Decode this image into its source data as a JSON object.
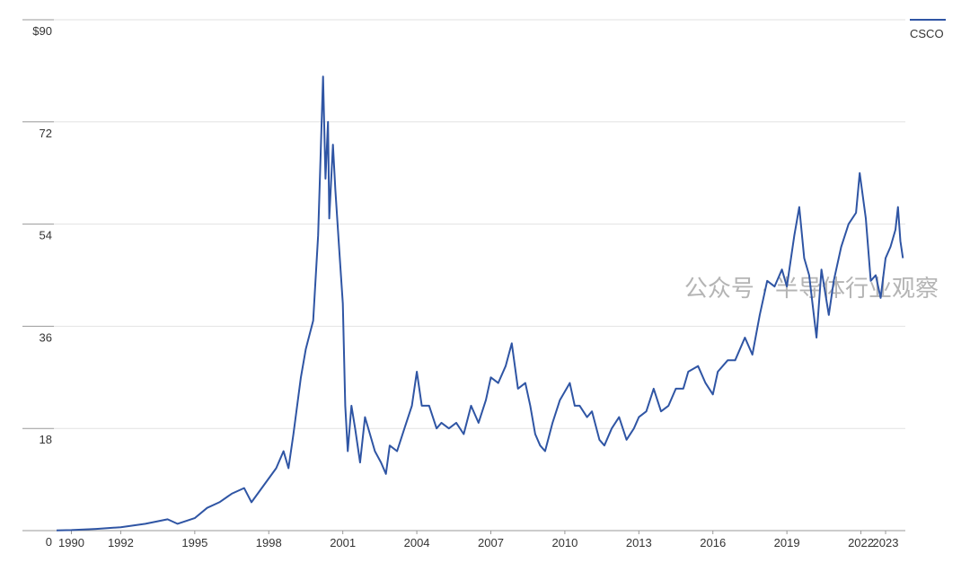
{
  "chart_data": {
    "type": "line",
    "legend_position": "top-right",
    "grid": true,
    "watermark": "公众号 · 半导体行业观察",
    "xlim": [
      1989.4,
      2023.8
    ],
    "xticks": [
      1990,
      1992,
      1995,
      1998,
      2001,
      2004,
      2007,
      2010,
      2013,
      2016,
      2019,
      2022,
      2023
    ],
    "ylim": [
      0,
      90
    ],
    "yticks": [
      0,
      18,
      36,
      54,
      72,
      {
        "value": 90,
        "label": "$90"
      }
    ],
    "x": [
      1989.4,
      1990.0,
      1991.0,
      1992.0,
      1993.0,
      1993.9,
      1994.3,
      1995.0,
      1995.5,
      1996.0,
      1996.5,
      1997.0,
      1997.3,
      1997.8,
      1998.3,
      1998.6,
      1998.8,
      1999.0,
      1999.3,
      1999.5,
      1999.8,
      2000.0,
      2000.2,
      2000.3,
      2000.4,
      2000.45,
      2000.6,
      2000.7,
      2000.85,
      2001.0,
      2001.1,
      2001.2,
      2001.35,
      2001.5,
      2001.7,
      2001.9,
      2002.1,
      2002.3,
      2002.55,
      2002.75,
      2002.9,
      2003.2,
      2003.5,
      2003.8,
      2004.0,
      2004.2,
      2004.5,
      2004.8,
      2005.0,
      2005.3,
      2005.6,
      2005.9,
      2006.2,
      2006.5,
      2006.8,
      2007.0,
      2007.3,
      2007.6,
      2007.85,
      2008.1,
      2008.4,
      2008.6,
      2008.8,
      2009.0,
      2009.2,
      2009.5,
      2009.8,
      2010.2,
      2010.4,
      2010.6,
      2010.9,
      2011.1,
      2011.4,
      2011.6,
      2011.9,
      2012.2,
      2012.5,
      2012.8,
      2013.0,
      2013.3,
      2013.6,
      2013.9,
      2014.2,
      2014.5,
      2014.8,
      2015.0,
      2015.4,
      2015.7,
      2016.0,
      2016.2,
      2016.6,
      2016.9,
      2017.3,
      2017.6,
      2017.9,
      2018.2,
      2018.5,
      2018.8,
      2019.0,
      2019.3,
      2019.5,
      2019.7,
      2019.9,
      2020.2,
      2020.4,
      2020.7,
      2020.9,
      2021.2,
      2021.5,
      2021.8,
      2021.95,
      2022.2,
      2022.4,
      2022.6,
      2022.8,
      2023.0,
      2023.2,
      2023.4,
      2023.5,
      2023.6,
      2023.7
    ],
    "series": [
      {
        "name": "CSCO",
        "color": "#2f55a4",
        "values": [
          0.05,
          0.1,
          0.3,
          0.6,
          1.2,
          2.0,
          1.2,
          2.2,
          4,
          5,
          6.5,
          7.5,
          5,
          8,
          11,
          14,
          11,
          17,
          27,
          32,
          37,
          52,
          80,
          62,
          72,
          55,
          68,
          60,
          50,
          40,
          22,
          14,
          22,
          18,
          12,
          20,
          17,
          14,
          12,
          10,
          15,
          14,
          18,
          22,
          28,
          22,
          22,
          18,
          19,
          18,
          19,
          17,
          22,
          19,
          23,
          27,
          26,
          29,
          33,
          25,
          26,
          22,
          17,
          15,
          14,
          19,
          23,
          26,
          22,
          22,
          20,
          21,
          16,
          15,
          18,
          20,
          16,
          18,
          20,
          21,
          25,
          21,
          22,
          25,
          25,
          28,
          29,
          26,
          24,
          28,
          30,
          30,
          34,
          31,
          38,
          44,
          43,
          46,
          43,
          52,
          57,
          48,
          45,
          34,
          46,
          38,
          44,
          50,
          54,
          56,
          63,
          55,
          44,
          45,
          41,
          48,
          50,
          53,
          57,
          51,
          48
        ]
      }
    ]
  }
}
